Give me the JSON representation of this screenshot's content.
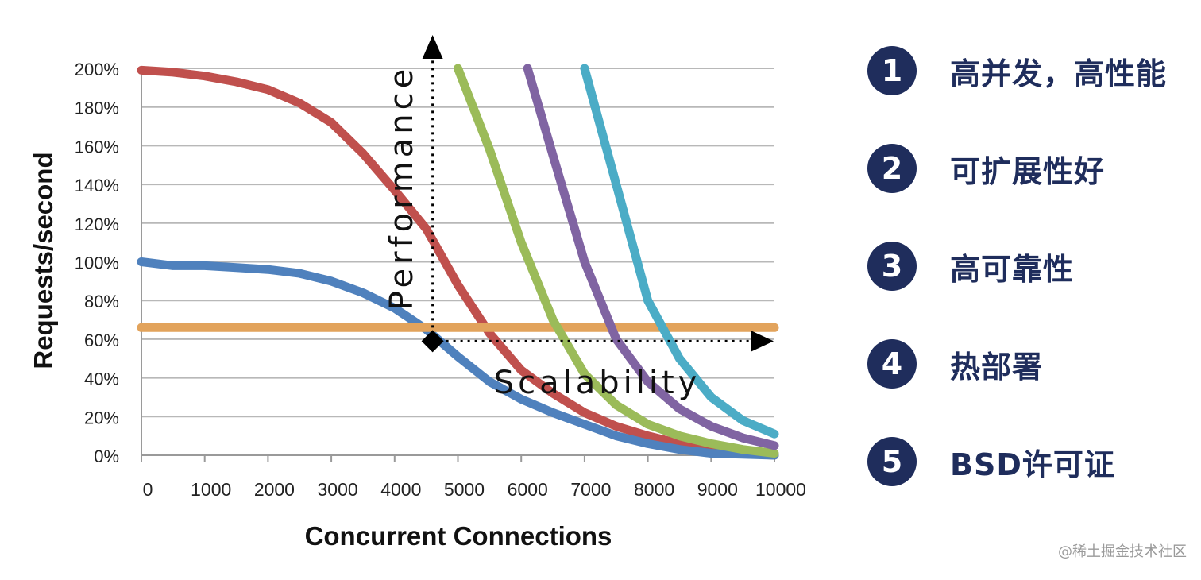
{
  "chart_data": {
    "type": "line",
    "xlabel": "Concurrent Connections",
    "ylabel": "Requests/second",
    "xlim": [
      0,
      10000
    ],
    "ylim": [
      0,
      200
    ],
    "x_ticks": [
      "0",
      "1000",
      "2000",
      "3000",
      "4000",
      "5000",
      "6000",
      "7000",
      "8000",
      "9000",
      "10000"
    ],
    "y_ticks": [
      "0%",
      "20%",
      "40%",
      "60%",
      "80%",
      "100%",
      "120%",
      "140%",
      "160%",
      "180%",
      "200%"
    ],
    "grid": true,
    "series": [
      {
        "name": "red",
        "color": "#c0504d",
        "x": [
          0,
          500,
          1000,
          1500,
          2000,
          2500,
          3000,
          3500,
          4000,
          4500,
          5000,
          5500,
          6000,
          6500,
          7000,
          7500,
          8000,
          8500,
          9000,
          9500,
          10000
        ],
        "y": [
          199,
          198,
          196,
          193,
          189,
          182,
          172,
          156,
          137,
          117,
          88,
          63,
          44,
          32,
          22,
          15,
          10,
          6,
          3,
          1,
          0
        ]
      },
      {
        "name": "blue",
        "color": "#4f81bd",
        "x": [
          0,
          500,
          1000,
          1500,
          2000,
          2500,
          3000,
          3500,
          4000,
          4500,
          5000,
          5500,
          6000,
          6500,
          7000,
          7500,
          8000,
          8500,
          9000,
          9500,
          10000
        ],
        "y": [
          100,
          98,
          98,
          97,
          96,
          94,
          90,
          84,
          76,
          65,
          51,
          38,
          29,
          22,
          16,
          10,
          6,
          3,
          1,
          0.5,
          0
        ]
      },
      {
        "name": "orange",
        "color": "#e2a35c",
        "x": [
          0,
          10000
        ],
        "y": [
          66,
          66
        ]
      },
      {
        "name": "green",
        "color": "#9bbb59",
        "x": [
          5000,
          5500,
          6000,
          6500,
          7000,
          7500,
          8000,
          8500,
          9000,
          9500,
          10000
        ],
        "y": [
          200,
          158,
          110,
          70,
          42,
          26,
          16,
          10,
          6,
          3,
          1
        ]
      },
      {
        "name": "purple",
        "color": "#8064a2",
        "x": [
          6100,
          6500,
          7000,
          7500,
          8000,
          8500,
          9000,
          9500,
          10000
        ],
        "y": [
          200,
          155,
          100,
          60,
          38,
          24,
          15,
          9,
          5
        ]
      },
      {
        "name": "teal",
        "color": "#4bacc6",
        "x": [
          7000,
          7500,
          8000,
          8500,
          9000,
          9500,
          10000
        ],
        "y": [
          200,
          140,
          80,
          50,
          30,
          18,
          11
        ]
      }
    ],
    "annotations": {
      "vertical_arrow_label": "Performance",
      "horizontal_arrow_label": "Scalability",
      "marker_x": 4600,
      "marker_y": 59
    }
  },
  "features": [
    {
      "number": "1",
      "label": "高并发，高性能"
    },
    {
      "number": "2",
      "label": "可扩展性好"
    },
    {
      "number": "3",
      "label": "高可靠性"
    },
    {
      "number": "4",
      "label": "热部署"
    },
    {
      "number": "5",
      "label": "BSD许可证"
    }
  ],
  "watermark": "@稀土掘金技术社区",
  "colors": {
    "badge": "#1f2d5c",
    "text": "#1f2d5c"
  }
}
